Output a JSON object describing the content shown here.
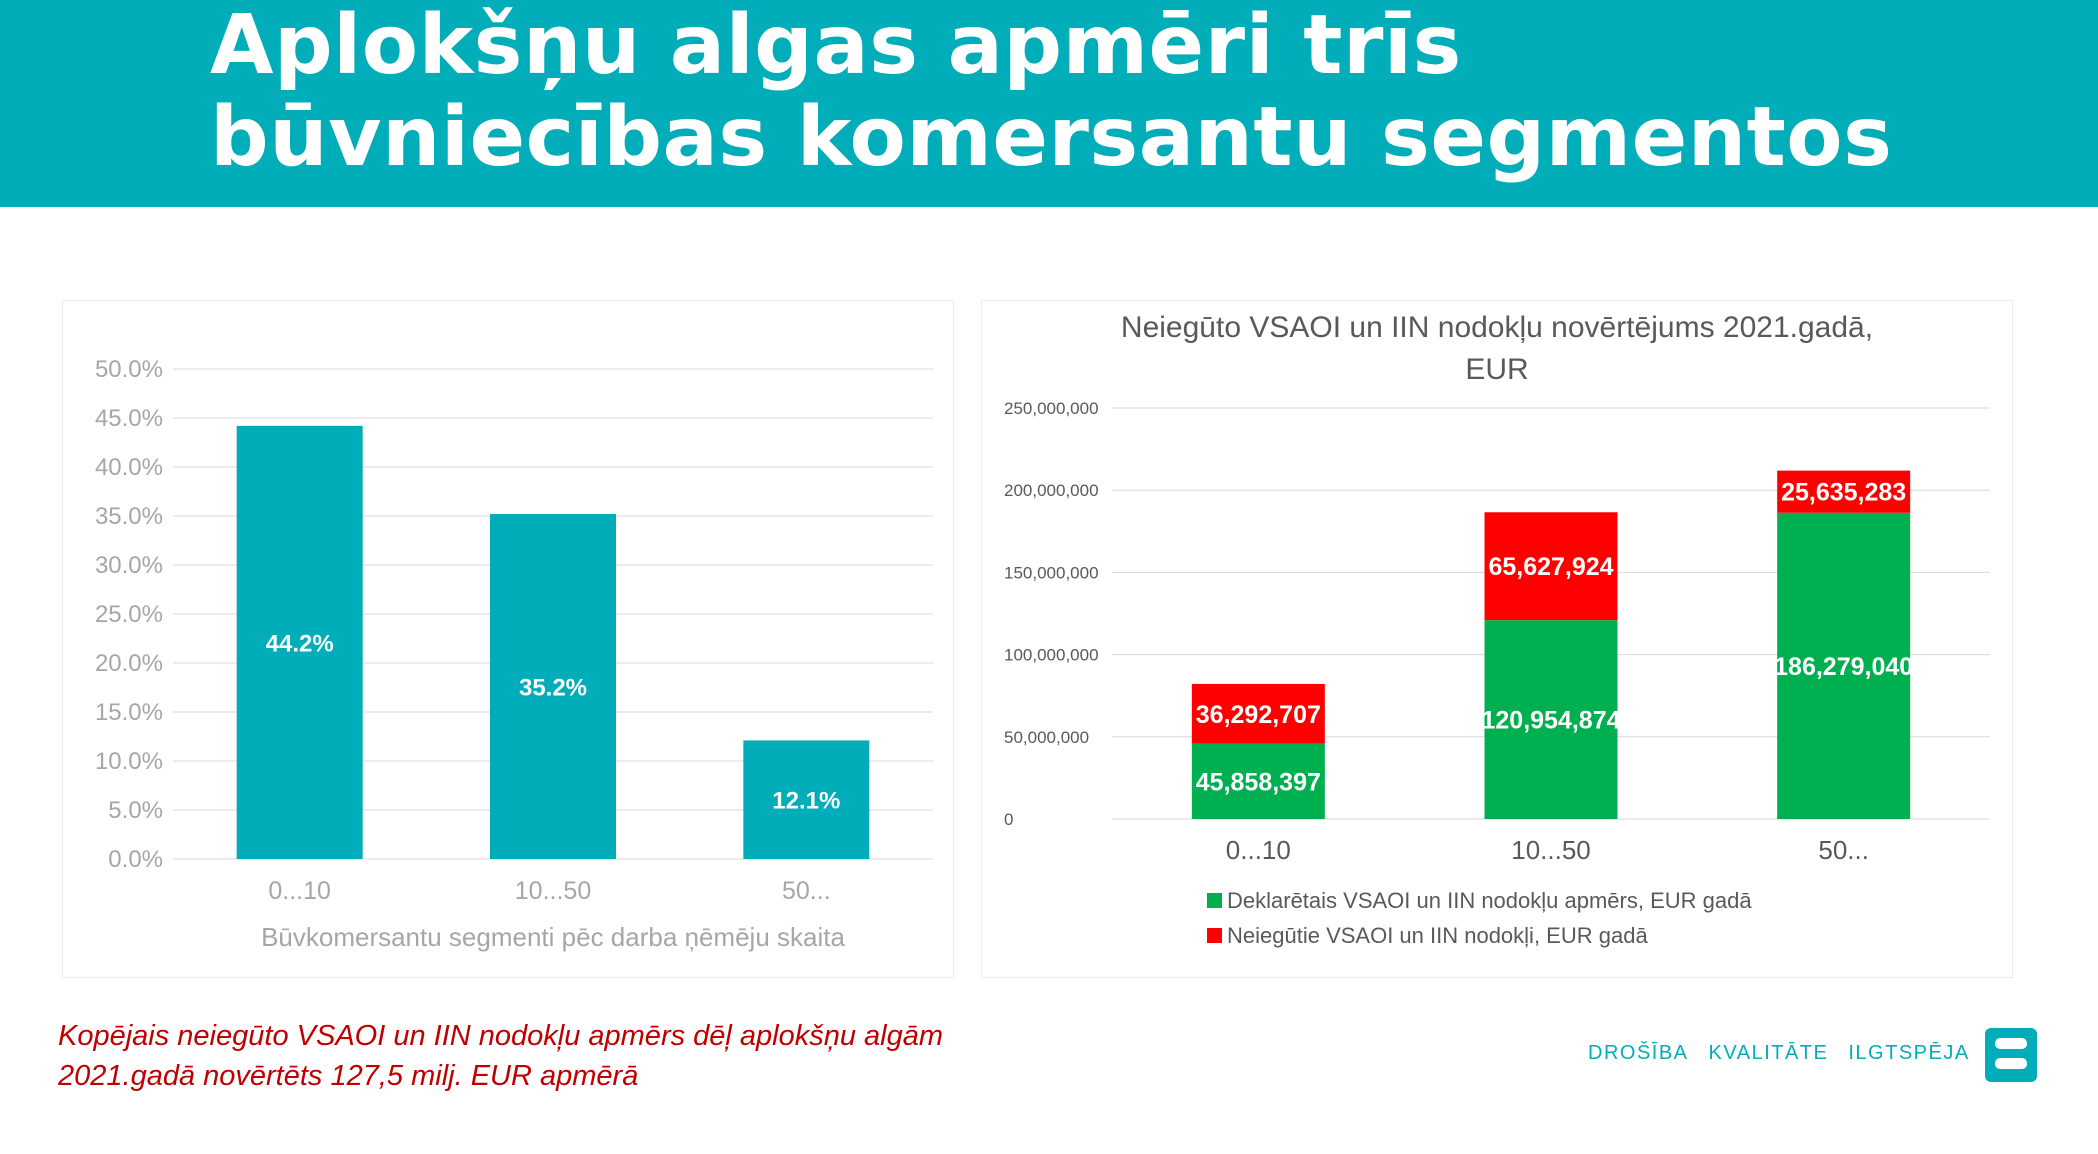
{
  "header": {
    "title_line1": "Aplokšņu algas apmēri trīs",
    "title_line2": "būvniecības komersantu segmentos",
    "background": "#00adb9"
  },
  "chart_data": [
    {
      "type": "bar",
      "categories": [
        "0...10",
        "10...50",
        "50..."
      ],
      "values": [
        44.2,
        35.2,
        12.1
      ],
      "data_labels": [
        "44.2%",
        "35.2%",
        "12.1%"
      ],
      "unit": "%",
      "title": "",
      "xlabel": "Būvkomersantu segmenti pēc darba ņēmēju skaita",
      "ylabel": "",
      "ylim": [
        0,
        50
      ],
      "y_ticks": [
        "0.0%",
        "5.0%",
        "10.0%",
        "15.0%",
        "20.0%",
        "25.0%",
        "30.0%",
        "35.0%",
        "40.0%",
        "45.0%",
        "50.0%"
      ],
      "grid": true,
      "color": "#00adb9"
    },
    {
      "type": "bar",
      "stacked": true,
      "title": "Neiegūto VSAOI un IIN nodokļu novērtējums 2021.gadā, EUR",
      "title_lines": [
        "Neiegūto VSAOI un IIN nodokļu novērtējums 2021.gadā,",
        "EUR"
      ],
      "categories": [
        "0...10",
        "10...50",
        "50..."
      ],
      "series": [
        {
          "name": "Deklarētais VSAOI un IIN nodokļu apmērs, EUR gadā",
          "values": [
            45858397,
            120954874,
            186279040
          ],
          "data_labels": [
            "45,858,397",
            "120,954,874",
            "186,279,040"
          ],
          "color": "#00b050"
        },
        {
          "name": "Neiegūtie VSAOI un IIN nodokļi, EUR gadā",
          "values": [
            36292707,
            65627924,
            25635283
          ],
          "data_labels": [
            "36,292,707",
            "65,627,924",
            "25,635,283"
          ],
          "color": "#ff0000"
        }
      ],
      "ylim": [
        0,
        250000000
      ],
      "y_ticks": [
        "0",
        "50,000,000",
        "100,000,000",
        "150,000,000",
        "200,000,000",
        "250,000,000"
      ],
      "grid": true,
      "legend_position": "bottom"
    }
  ],
  "footnote": {
    "line1": "Kopējais neiegūto VSAOI un IIN nodokļu apmērs dēļ aplokšņu algām",
    "line2": "2021.gadā novērtēts 127,5 milj. EUR apmērā",
    "color": "#c00000"
  },
  "brand": {
    "words": [
      "DROŠĪBA",
      "KVALITĀTE",
      "ILGTSPĒJA"
    ],
    "logo_icon": "stacked-bars-logo-icon"
  }
}
